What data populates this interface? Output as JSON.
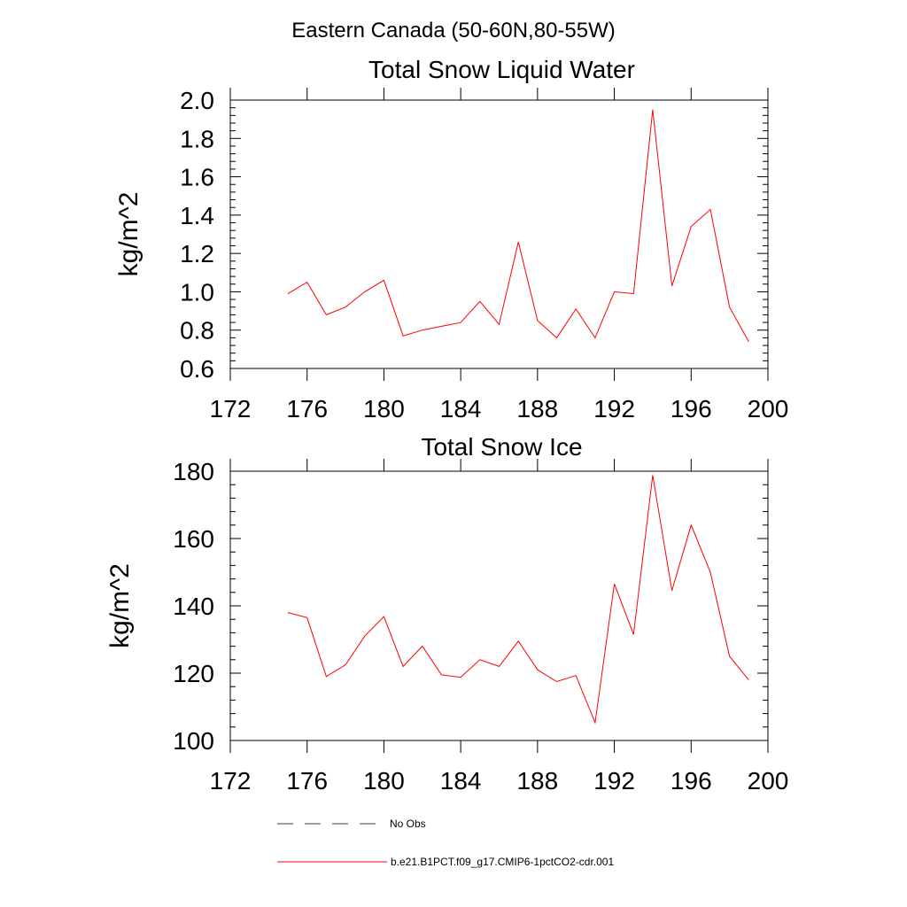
{
  "suptitle": "Eastern Canada (50-60N,80-55W)",
  "chart_data": [
    {
      "type": "line",
      "title": "Total Snow Liquid Water",
      "xlabel": "",
      "ylabel": "kg/m^2",
      "xlim": [
        172,
        200
      ],
      "ylim": [
        0.6,
        2.0
      ],
      "xticks": [
        172,
        176,
        180,
        184,
        188,
        192,
        196,
        200
      ],
      "xtick_labels": [
        "172",
        "176",
        "180",
        "184",
        "188",
        "192",
        "196",
        "200"
      ],
      "yticks": [
        0.6,
        0.8,
        1.0,
        1.2,
        1.4,
        1.6,
        1.8,
        2.0
      ],
      "ytick_labels": [
        "0.6",
        "0.8",
        "1.0",
        "1.2",
        "1.4",
        "1.6",
        "1.8",
        "2.0"
      ],
      "grid": false,
      "series": [
        {
          "name": "b.e21.B1PCT.f09_g17.CMIP6-1pctCO2-cdr.001",
          "color": "#ff0000",
          "x": [
            175,
            176,
            177,
            178,
            179,
            180,
            181,
            182,
            183,
            184,
            185,
            186,
            187,
            188,
            189,
            190,
            191,
            192,
            193,
            194,
            195,
            196,
            197,
            198,
            199
          ],
          "y": [
            0.99,
            1.05,
            0.88,
            0.92,
            1.0,
            1.06,
            0.77,
            0.8,
            0.82,
            0.84,
            0.95,
            0.83,
            1.26,
            0.85,
            0.76,
            0.91,
            0.76,
            1.0,
            0.99,
            1.95,
            1.03,
            1.34,
            1.43,
            0.92,
            0.74
          ]
        }
      ]
    },
    {
      "type": "line",
      "title": "Total Snow Ice",
      "xlabel": "",
      "ylabel": "kg/m^2",
      "xlim": [
        172,
        200
      ],
      "ylim": [
        100,
        180
      ],
      "xticks": [
        172,
        176,
        180,
        184,
        188,
        192,
        196,
        200
      ],
      "xtick_labels": [
        "172",
        "176",
        "180",
        "184",
        "188",
        "192",
        "196",
        "200"
      ],
      "yticks": [
        100,
        120,
        140,
        160,
        180
      ],
      "ytick_labels": [
        "100",
        "120",
        "140",
        "160",
        "180"
      ],
      "grid": false,
      "series": [
        {
          "name": "b.e21.B1PCT.f09_g17.CMIP6-1pctCO2-cdr.001",
          "color": "#ff0000",
          "x": [
            175,
            176,
            177,
            178,
            179,
            180,
            181,
            182,
            183,
            184,
            185,
            186,
            187,
            188,
            189,
            190,
            191,
            192,
            193,
            194,
            195,
            196,
            197,
            198,
            199
          ],
          "y": [
            138,
            136.5,
            119,
            122.5,
            131,
            136.8,
            122,
            128,
            119.5,
            118.8,
            124,
            122,
            129.5,
            121,
            117.5,
            119.3,
            105.3,
            146.5,
            131.5,
            178.8,
            144.5,
            164,
            150,
            125,
            118
          ]
        }
      ]
    }
  ],
  "legend": {
    "placement": "bottom",
    "items": [
      {
        "label": "No Obs",
        "style": "dashed",
        "color": "#3a3a5a"
      },
      {
        "label": "b.e21.B1PCT.f09_g17.CMIP6-1pctCO2-cdr.001",
        "style": "solid",
        "color": "#ff0000"
      }
    ]
  }
}
